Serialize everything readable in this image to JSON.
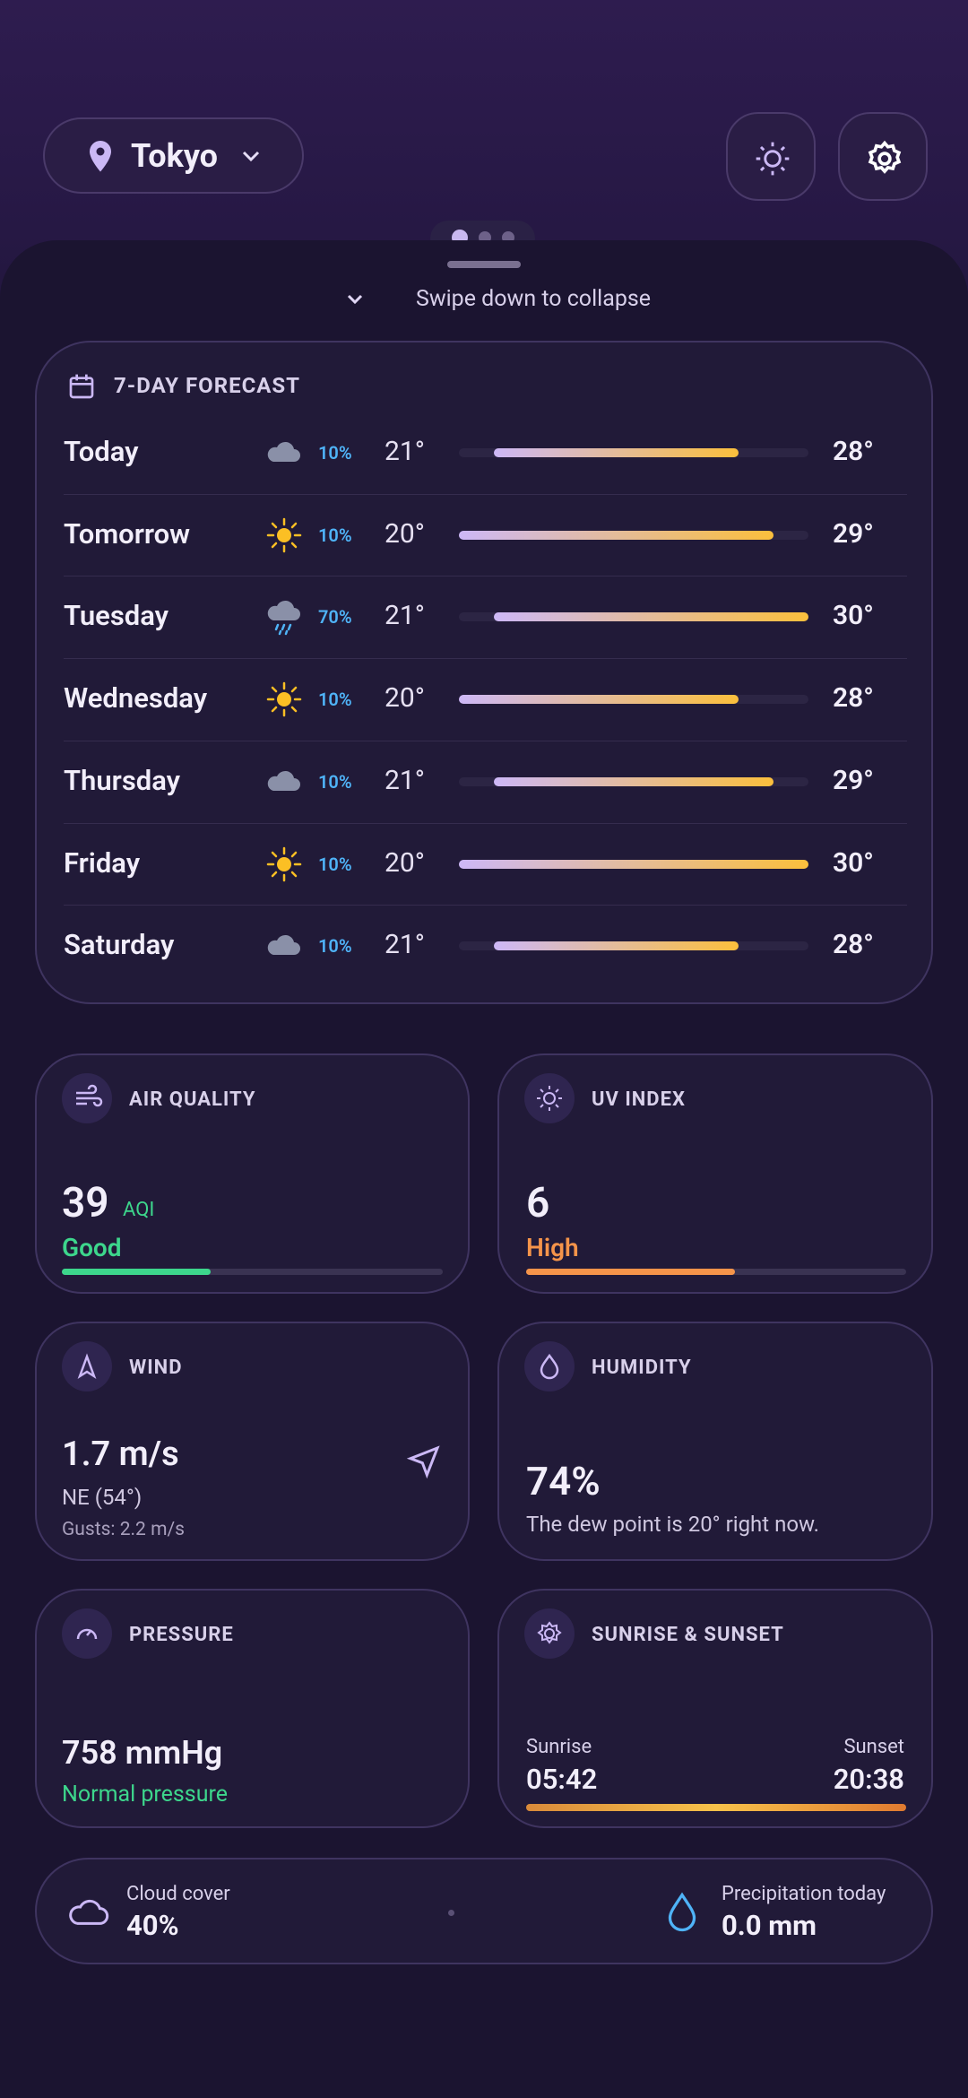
{
  "header": {
    "location": "Tokyo"
  },
  "sheet": {
    "collapse_hint": "Swipe down to collapse"
  },
  "forecast": {
    "title": "7-DAY FORECAST",
    "scale": [
      20,
      30
    ],
    "days": [
      {
        "day": "Today",
        "icon": "cloud",
        "precip": "10%",
        "low": "21°",
        "high": "28°"
      },
      {
        "day": "Tomorrow",
        "icon": "sun",
        "precip": "10%",
        "low": "20°",
        "high": "29°"
      },
      {
        "day": "Tuesday",
        "icon": "rain",
        "precip": "70%",
        "low": "21°",
        "high": "30°"
      },
      {
        "day": "Wednesday",
        "icon": "sun",
        "precip": "10%",
        "low": "20°",
        "high": "28°"
      },
      {
        "day": "Thursday",
        "icon": "cloud",
        "precip": "10%",
        "low": "21°",
        "high": "29°"
      },
      {
        "day": "Friday",
        "icon": "sun",
        "precip": "10%",
        "low": "20°",
        "high": "30°"
      },
      {
        "day": "Saturday",
        "icon": "cloud",
        "precip": "10%",
        "low": "21°",
        "high": "28°"
      }
    ]
  },
  "air_quality": {
    "title": "AIR QUALITY",
    "value": "39",
    "unit": "AQI",
    "status": "Good"
  },
  "uv_index": {
    "title": "UV INDEX",
    "value": "6",
    "status": "High"
  },
  "wind": {
    "title": "WIND",
    "speed": "1.7 m/s",
    "direction": "NE (54°)",
    "gusts": "Gusts: 2.2 m/s"
  },
  "humidity": {
    "title": "HUMIDITY",
    "value": "74%",
    "note": "The dew point is 20° right now."
  },
  "pressure": {
    "title": "PRESSURE",
    "value": "758 mmHg",
    "status": "Normal pressure"
  },
  "sun": {
    "title": "SUNRISE & SUNSET",
    "sunrise_label": "Sunrise",
    "sunrise": "05:42",
    "sunset_label": "Sunset",
    "sunset": "20:38"
  },
  "footer": {
    "cloud_label": "Cloud cover",
    "cloud": "40%",
    "precip_label": "Precipitation today",
    "precip": "0.0 mm"
  }
}
